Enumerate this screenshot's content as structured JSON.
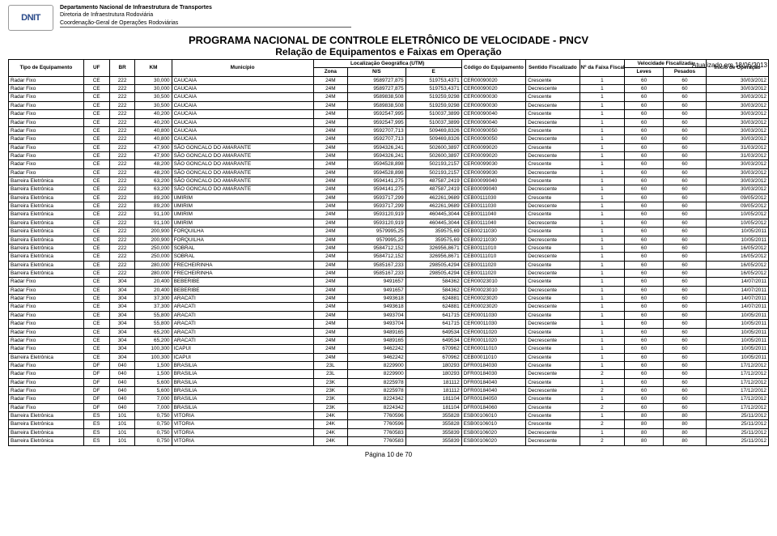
{
  "logo_text": "DNIT",
  "dept": {
    "l1": "Departamento Nacional de Infraestrutura de Transportes",
    "l2": "Diretoria de Infraestrutura Rodoviária",
    "l3": "Coordenação-Geral de Operações Rodoviárias"
  },
  "title1": "PROGRAMA NACIONAL DE CONTROLE ELETRÔNICO DE VELOCIDADE - PNCV",
  "title2": "Relação de Equipamentos e Faixas em Operação",
  "updated": "Atualizado em 18/06/2013",
  "footer": "Página 10 de 70",
  "head": {
    "tipo": "Tipo de Equipamento",
    "uf": "UF",
    "br": "BR",
    "km": "KM",
    "mun": "Município",
    "loc": "Localização Geográfica (UTM)",
    "zona": "Zona",
    "ns": "N/S",
    "e": "E",
    "cod": "Código do Equipamento",
    "sent": "Sentido Fiscalizado",
    "fx": "Nº da Faixa Fiscalizada",
    "vel": "Velocidade Fiscalizada",
    "lev": "Leves",
    "pes": "Pesados",
    "ini": "Início de Operação"
  },
  "rows": [
    [
      "Radar Fixo",
      "CE",
      "222",
      "30,000",
      "CAUCAIA",
      "24M",
      "9589727,875",
      "519753,4371",
      "CER00090020",
      "Crescente",
      "1",
      "60",
      "60",
      "30/03/2012"
    ],
    [
      "Radar Fixo",
      "CE",
      "222",
      "30,000",
      "CAUCAIA",
      "24M",
      "9589727,875",
      "519753,4371",
      "CER00090020",
      "Decrescente",
      "1",
      "60",
      "60",
      "30/03/2012"
    ],
    [
      "Radar Fixo",
      "CE",
      "222",
      "30,500",
      "CAUCAIA",
      "24M",
      "9589838,508",
      "519259,9298",
      "CER00090030",
      "Crescente",
      "1",
      "60",
      "60",
      "30/03/2012"
    ],
    [
      "Radar Fixo",
      "CE",
      "222",
      "30,500",
      "CAUCAIA",
      "24M",
      "9589838,508",
      "519259,9298",
      "CER00090030",
      "Decrescente",
      "1",
      "60",
      "60",
      "30/03/2012"
    ],
    [
      "Radar Fixo",
      "CE",
      "222",
      "40,200",
      "CAUCAIA",
      "24M",
      "9592547,995",
      "510037,3899",
      "CER00090040",
      "Crescente",
      "1",
      "60",
      "60",
      "30/03/2012"
    ],
    [
      "Radar Fixo",
      "CE",
      "222",
      "40,200",
      "CAUCAIA",
      "24M",
      "9592547,995",
      "510037,3899",
      "CER00090040",
      "Decrescente",
      "1",
      "60",
      "60",
      "30/03/2012"
    ],
    [
      "Radar Fixo",
      "CE",
      "222",
      "40,800",
      "CAUCAIA",
      "24M",
      "9592707,713",
      "509469,8326",
      "CER00090050",
      "Crescente",
      "1",
      "60",
      "60",
      "30/03/2012"
    ],
    [
      "Radar Fixo",
      "CE",
      "222",
      "40,800",
      "CAUCAIA",
      "24M",
      "9592707,713",
      "509469,8326",
      "CER00090050",
      "Decrescente",
      "1",
      "60",
      "60",
      "30/03/2012"
    ],
    [
      "Radar Fixo",
      "CE",
      "222",
      "47,900",
      "SÃO GONCALO DO AMARANTE",
      "24M",
      "9594326,241",
      "502600,3897",
      "CER00099020",
      "Crescente",
      "1",
      "60",
      "60",
      "31/03/2012"
    ],
    [
      "Radar Fixo",
      "CE",
      "222",
      "47,900",
      "SÃO GONCALO DO AMARANTE",
      "24M",
      "9594326,241",
      "502600,3897",
      "CER00099020",
      "Decrescente",
      "1",
      "60",
      "60",
      "31/03/2012"
    ],
    [
      "Radar Fixo",
      "CE",
      "222",
      "48,200",
      "SÃO GONCALO DO AMARANTE",
      "24M",
      "9594528,898",
      "502193,2157",
      "CER00099030",
      "Crescente",
      "1",
      "60",
      "60",
      "30/03/2012"
    ],
    [
      "Radar Fixo",
      "CE",
      "222",
      "48,200",
      "SÃO GONCALO DO AMARANTE",
      "24M",
      "9594528,898",
      "502193,2157",
      "CER00099030",
      "Decrescente",
      "1",
      "60",
      "60",
      "30/03/2012"
    ],
    [
      "Barreira Eletrônica",
      "CE",
      "222",
      "63,200",
      "SÃO GONCALO DO AMARANTE",
      "24M",
      "9594141,275",
      "487587,2419",
      "CEB00099040",
      "Crescente",
      "1",
      "60",
      "60",
      "30/03/2012"
    ],
    [
      "Barreira Eletrônica",
      "CE",
      "222",
      "63,200",
      "SÃO GONCALO DO AMARANTE",
      "24M",
      "9594141,275",
      "487587,2419",
      "CEB00099040",
      "Decrescente",
      "1",
      "60",
      "60",
      "30/03/2012"
    ],
    [
      "Barreira Eletrônica",
      "CE",
      "222",
      "89,200",
      "UMIRIM",
      "24M",
      "9593717,299",
      "462261,9689",
      "CEB00111030",
      "Crescente",
      "1",
      "60",
      "60",
      "09/05/2012"
    ],
    [
      "Barreira Eletrônica",
      "CE",
      "222",
      "89,200",
      "UMIRIM",
      "24M",
      "9593717,299",
      "462261,9689",
      "CEB00111030",
      "Decrescente",
      "1",
      "60",
      "60",
      "09/05/2012"
    ],
    [
      "Barreira Eletrônica",
      "CE",
      "222",
      "91,100",
      "UMIRIM",
      "24M",
      "9593120,919",
      "460445,3044",
      "CEB00111040",
      "Crescente",
      "1",
      "60",
      "60",
      "10/05/2012"
    ],
    [
      "Barreira Eletrônica",
      "CE",
      "222",
      "91,100",
      "UMIRIM",
      "24M",
      "9593120,919",
      "460445,3044",
      "CEB00111040",
      "Decrescente",
      "1",
      "60",
      "60",
      "10/05/2012"
    ],
    [
      "Barreira Eletrônica",
      "CE",
      "222",
      "200,900",
      "FORQUILHA",
      "24M",
      "9579995,25",
      "359575,69",
      "CEB00211030",
      "Crescente",
      "1",
      "60",
      "60",
      "10/05/2011"
    ],
    [
      "Barreira Eletrônica",
      "CE",
      "222",
      "200,900",
      "FORQUILHA",
      "24M",
      "9579995,25",
      "359575,69",
      "CEB00211030",
      "Decrescente",
      "1",
      "60",
      "60",
      "10/05/2011"
    ],
    [
      "Barreira Eletrônica",
      "CE",
      "222",
      "250,000",
      "SOBRAL",
      "24M",
      "9584712,152",
      "326956,8671",
      "CEB00111010",
      "Crescente",
      "1",
      "60",
      "60",
      "16/05/2012"
    ],
    [
      "Barreira Eletrônica",
      "CE",
      "222",
      "250,000",
      "SOBRAL",
      "24M",
      "9584712,152",
      "326956,8671",
      "CEB00111010",
      "Decrescente",
      "1",
      "60",
      "60",
      "16/05/2012"
    ],
    [
      "Barreira Eletrônica",
      "CE",
      "222",
      "280,000",
      "FRECHEIRINHA",
      "24M",
      "9585167,233",
      "298505,4294",
      "CEB00111020",
      "Crescente",
      "1",
      "60",
      "60",
      "16/05/2012"
    ],
    [
      "Barreira Eletrônica",
      "CE",
      "222",
      "280,000",
      "FRECHEIRINHA",
      "24M",
      "9585167,233",
      "298505,4294",
      "CEB00111020",
      "Decrescente",
      "1",
      "60",
      "60",
      "16/05/2012"
    ],
    [
      "Radar Fixo",
      "CE",
      "304",
      "20,400",
      "BEBERIBE",
      "24M",
      "9491657",
      "584362",
      "CER00023010",
      "Crescente",
      "1",
      "60",
      "60",
      "14/07/2011"
    ],
    [
      "Radar Fixo",
      "CE",
      "304",
      "20,400",
      "BEBERIBE",
      "24M",
      "9491657",
      "584362",
      "CER00023010",
      "Decrescente",
      "1",
      "60",
      "60",
      "14/07/2011"
    ],
    [
      "Radar Fixo",
      "CE",
      "304",
      "37,300",
      "ARACATI",
      "24M",
      "9493618",
      "624881",
      "CER00023020",
      "Crescente",
      "1",
      "60",
      "60",
      "14/07/2011"
    ],
    [
      "Radar Fixo",
      "CE",
      "304",
      "37,300",
      "ARACATI",
      "24M",
      "9493618",
      "624881",
      "CER00023020",
      "Decrescente",
      "1",
      "60",
      "60",
      "14/07/2011"
    ],
    [
      "Radar Fixo",
      "CE",
      "304",
      "55,800",
      "ARACATI",
      "24M",
      "9493704",
      "641715",
      "CER00011030",
      "Crescente",
      "1",
      "60",
      "60",
      "10/05/2011"
    ],
    [
      "Radar Fixo",
      "CE",
      "304",
      "55,800",
      "ARACATI",
      "24M",
      "9493704",
      "641715",
      "CER00011030",
      "Decrescente",
      "1",
      "60",
      "60",
      "10/05/2011"
    ],
    [
      "Radar Fixo",
      "CE",
      "304",
      "65,200",
      "ARACATI",
      "24M",
      "9489165",
      "649534",
      "CER00011020",
      "Crescente",
      "1",
      "60",
      "60",
      "10/05/2011"
    ],
    [
      "Radar Fixo",
      "CE",
      "304",
      "65,200",
      "ARACATI",
      "24M",
      "9489165",
      "649534",
      "CER00011020",
      "Decrescente",
      "1",
      "60",
      "60",
      "10/05/2011"
    ],
    [
      "Radar Fixo",
      "CE",
      "304",
      "100,300",
      "ICAPUI",
      "24M",
      "9462242",
      "670962",
      "CER00011010",
      "Crescente",
      "1",
      "60",
      "60",
      "10/05/2011"
    ],
    [
      "Barreira Eletrônica",
      "CE",
      "304",
      "100,300",
      "ICAPUI",
      "24M",
      "9462242",
      "670962",
      "CEB00011010",
      "Crescente",
      "1",
      "60",
      "60",
      "10/05/2011"
    ],
    [
      "Radar Fixo",
      "DF",
      "040",
      "1,500",
      "BRASILIA",
      "23L",
      "8229900",
      "180293",
      "DFR00184030",
      "Crescente",
      "1",
      "60",
      "60",
      "17/12/2012"
    ],
    [
      "Radar Fixo",
      "DF",
      "040",
      "1,500",
      "BRASILIA",
      "23L",
      "8229900",
      "180293",
      "DFR00184030",
      "Decrescente",
      "2",
      "60",
      "60",
      "17/12/2012"
    ],
    [
      "Radar Fixo",
      "DF",
      "040",
      "5,600",
      "BRASILIA",
      "23K",
      "8225978",
      "181112",
      "DFR00184040",
      "Crescente",
      "1",
      "60",
      "60",
      "17/12/2012"
    ],
    [
      "Radar Fixo",
      "DF",
      "040",
      "5,600",
      "BRASILIA",
      "23K",
      "8225978",
      "181112",
      "DFR00184040",
      "Decrescente",
      "2",
      "60",
      "60",
      "17/12/2012"
    ],
    [
      "Radar Fixo",
      "DF",
      "040",
      "7,000",
      "BRASILIA",
      "23K",
      "8224342",
      "181104",
      "DFR00184050",
      "Crescente",
      "1",
      "60",
      "60",
      "17/12/2012"
    ],
    [
      "Radar Fixo",
      "DF",
      "040",
      "7,000",
      "BRASILIA",
      "23K",
      "8224342",
      "181104",
      "DFR00184060",
      "Crescente",
      "2",
      "60",
      "60",
      "17/12/2012"
    ],
    [
      "Barreira Eletrônica",
      "ES",
      "101",
      "0,750",
      "VITORIA",
      "24K",
      "7760596",
      "355828",
      "ESB00106010",
      "Crescente",
      "1",
      "80",
      "80",
      "25/11/2012"
    ],
    [
      "Barreira Eletrônica",
      "ES",
      "101",
      "0,750",
      "VITORIA",
      "24K",
      "7760596",
      "355828",
      "ESB00106010",
      "Crescente",
      "2",
      "80",
      "80",
      "25/11/2012"
    ],
    [
      "Barreira Eletrônica",
      "ES",
      "101",
      "0,750",
      "VITORIA",
      "24K",
      "7760583",
      "355839",
      "ESB00106020",
      "Decrescente",
      "1",
      "80",
      "80",
      "25/11/2012"
    ],
    [
      "Barreira Eletrônica",
      "ES",
      "101",
      "0,750",
      "VITORIA",
      "24K",
      "7760583",
      "355839",
      "ESB00106020",
      "Decrescente",
      "2",
      "80",
      "80",
      "25/11/2012"
    ]
  ],
  "align": [
    "l",
    "c",
    "c",
    "r",
    "l",
    "c",
    "r",
    "r",
    "l",
    "l",
    "c",
    "c",
    "c",
    "r"
  ]
}
